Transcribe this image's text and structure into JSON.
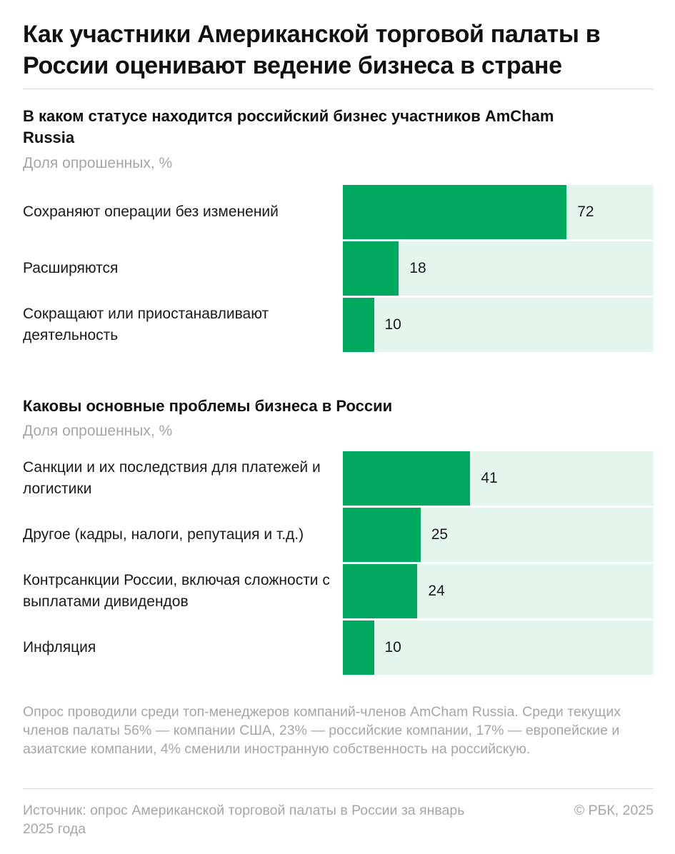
{
  "title": "Как участники Американской торговой палаты в России оценивают ведение бизнеса в стране",
  "chart_data": [
    {
      "type": "bar",
      "orientation": "horizontal",
      "title": "В каком статусе находится российский бизнес участников AmCham Russia",
      "subtitle": "Доля опрошенных, %",
      "categories": [
        "Сохраняют операции без изменений",
        "Расширяются",
        "Сокращают или приостанавливают деятельность"
      ],
      "values": [
        72,
        18,
        10
      ],
      "xlim": [
        0,
        100
      ],
      "colors": {
        "bar": "#00a860",
        "track": "#e4f5ec"
      }
    },
    {
      "type": "bar",
      "orientation": "horizontal",
      "title": "Каковы основные проблемы бизнеса в России",
      "subtitle": "Доля опрошенных, %",
      "categories": [
        "Санкции и их последствия для платежей и логистики",
        "Другое (кадры, налоги, репутация и т.д.)",
        "Контрсанкции России, включая сложности с выплатами дивидендов",
        "Инфляция"
      ],
      "values": [
        41,
        25,
        24,
        10
      ],
      "xlim": [
        0,
        100
      ],
      "colors": {
        "bar": "#00a860",
        "track": "#e4f5ec"
      }
    }
  ],
  "note": "Опрос проводили среди топ-менеджеров компаний-членов AmCham Russia. Среди текущих членов палаты 56% — компании США, 23% — российские компании, 17% — европейские и азиатские компании, 4% сменили иностранную собственность на российскую.",
  "source": "Источник: опрос Американской торговой палаты в России за январь 2025 года",
  "copyright": "© РБК, 2025"
}
